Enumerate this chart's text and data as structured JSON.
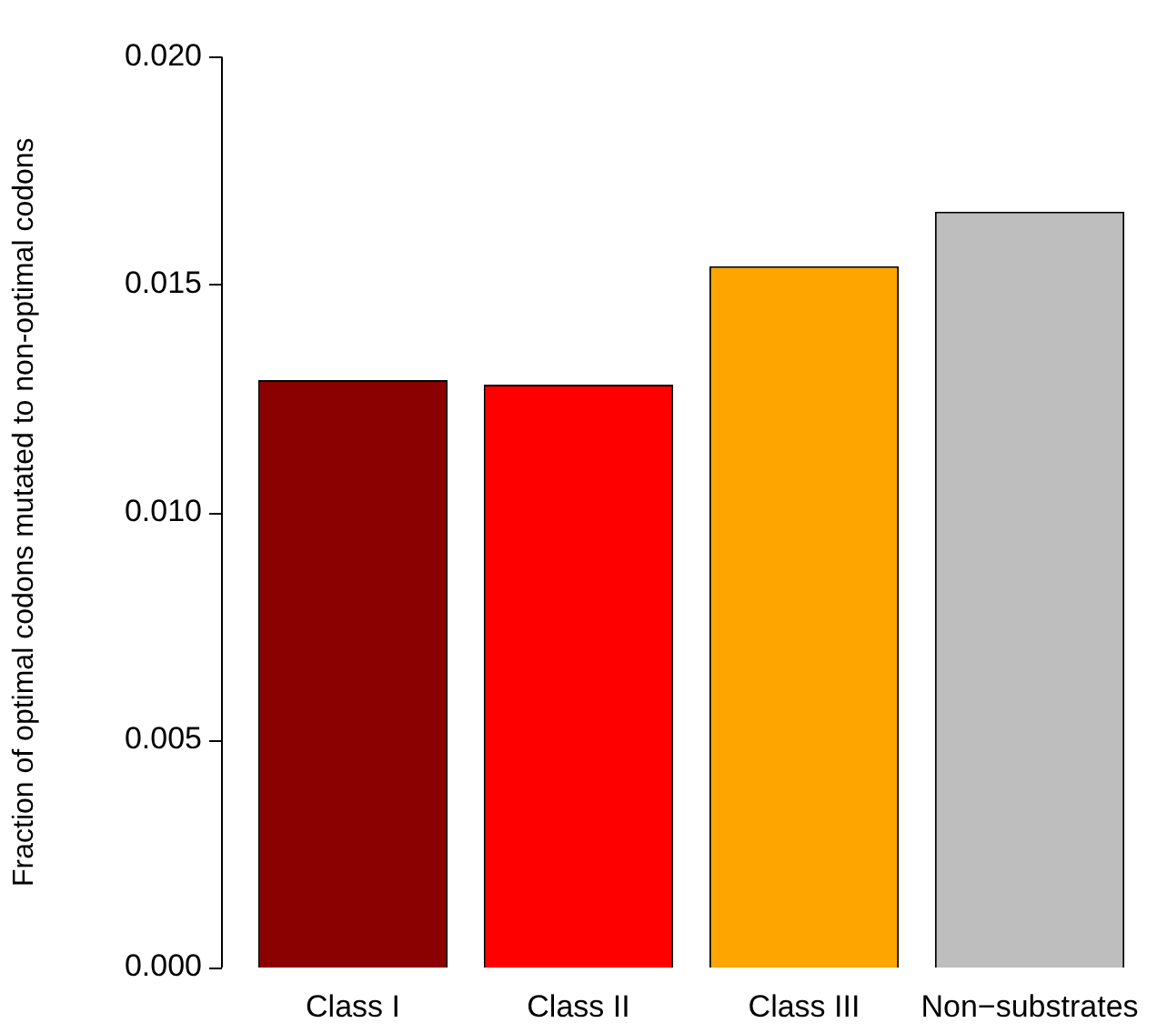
{
  "chart_data": {
    "type": "bar",
    "ylabel": "Fraction of optimal codons mutated to non-optimal codons",
    "categories": [
      "Class I",
      "Class II",
      "Class III",
      "Non−substrates"
    ],
    "values": [
      0.0129,
      0.0128,
      0.0154,
      0.0166
    ],
    "colors": [
      "#8b0000",
      "#ff0000",
      "#ffa500",
      "#bebebe"
    ],
    "ylim": [
      0,
      0.02
    ],
    "yticks": [
      {
        "value": 0,
        "label": "0.000"
      },
      {
        "value": 0.005,
        "label": "0.005"
      },
      {
        "value": 0.01,
        "label": "0.010"
      },
      {
        "value": 0.015,
        "label": "0.015"
      },
      {
        "value": 0.02,
        "label": "0.020"
      }
    ],
    "grid": false,
    "legend": false
  }
}
